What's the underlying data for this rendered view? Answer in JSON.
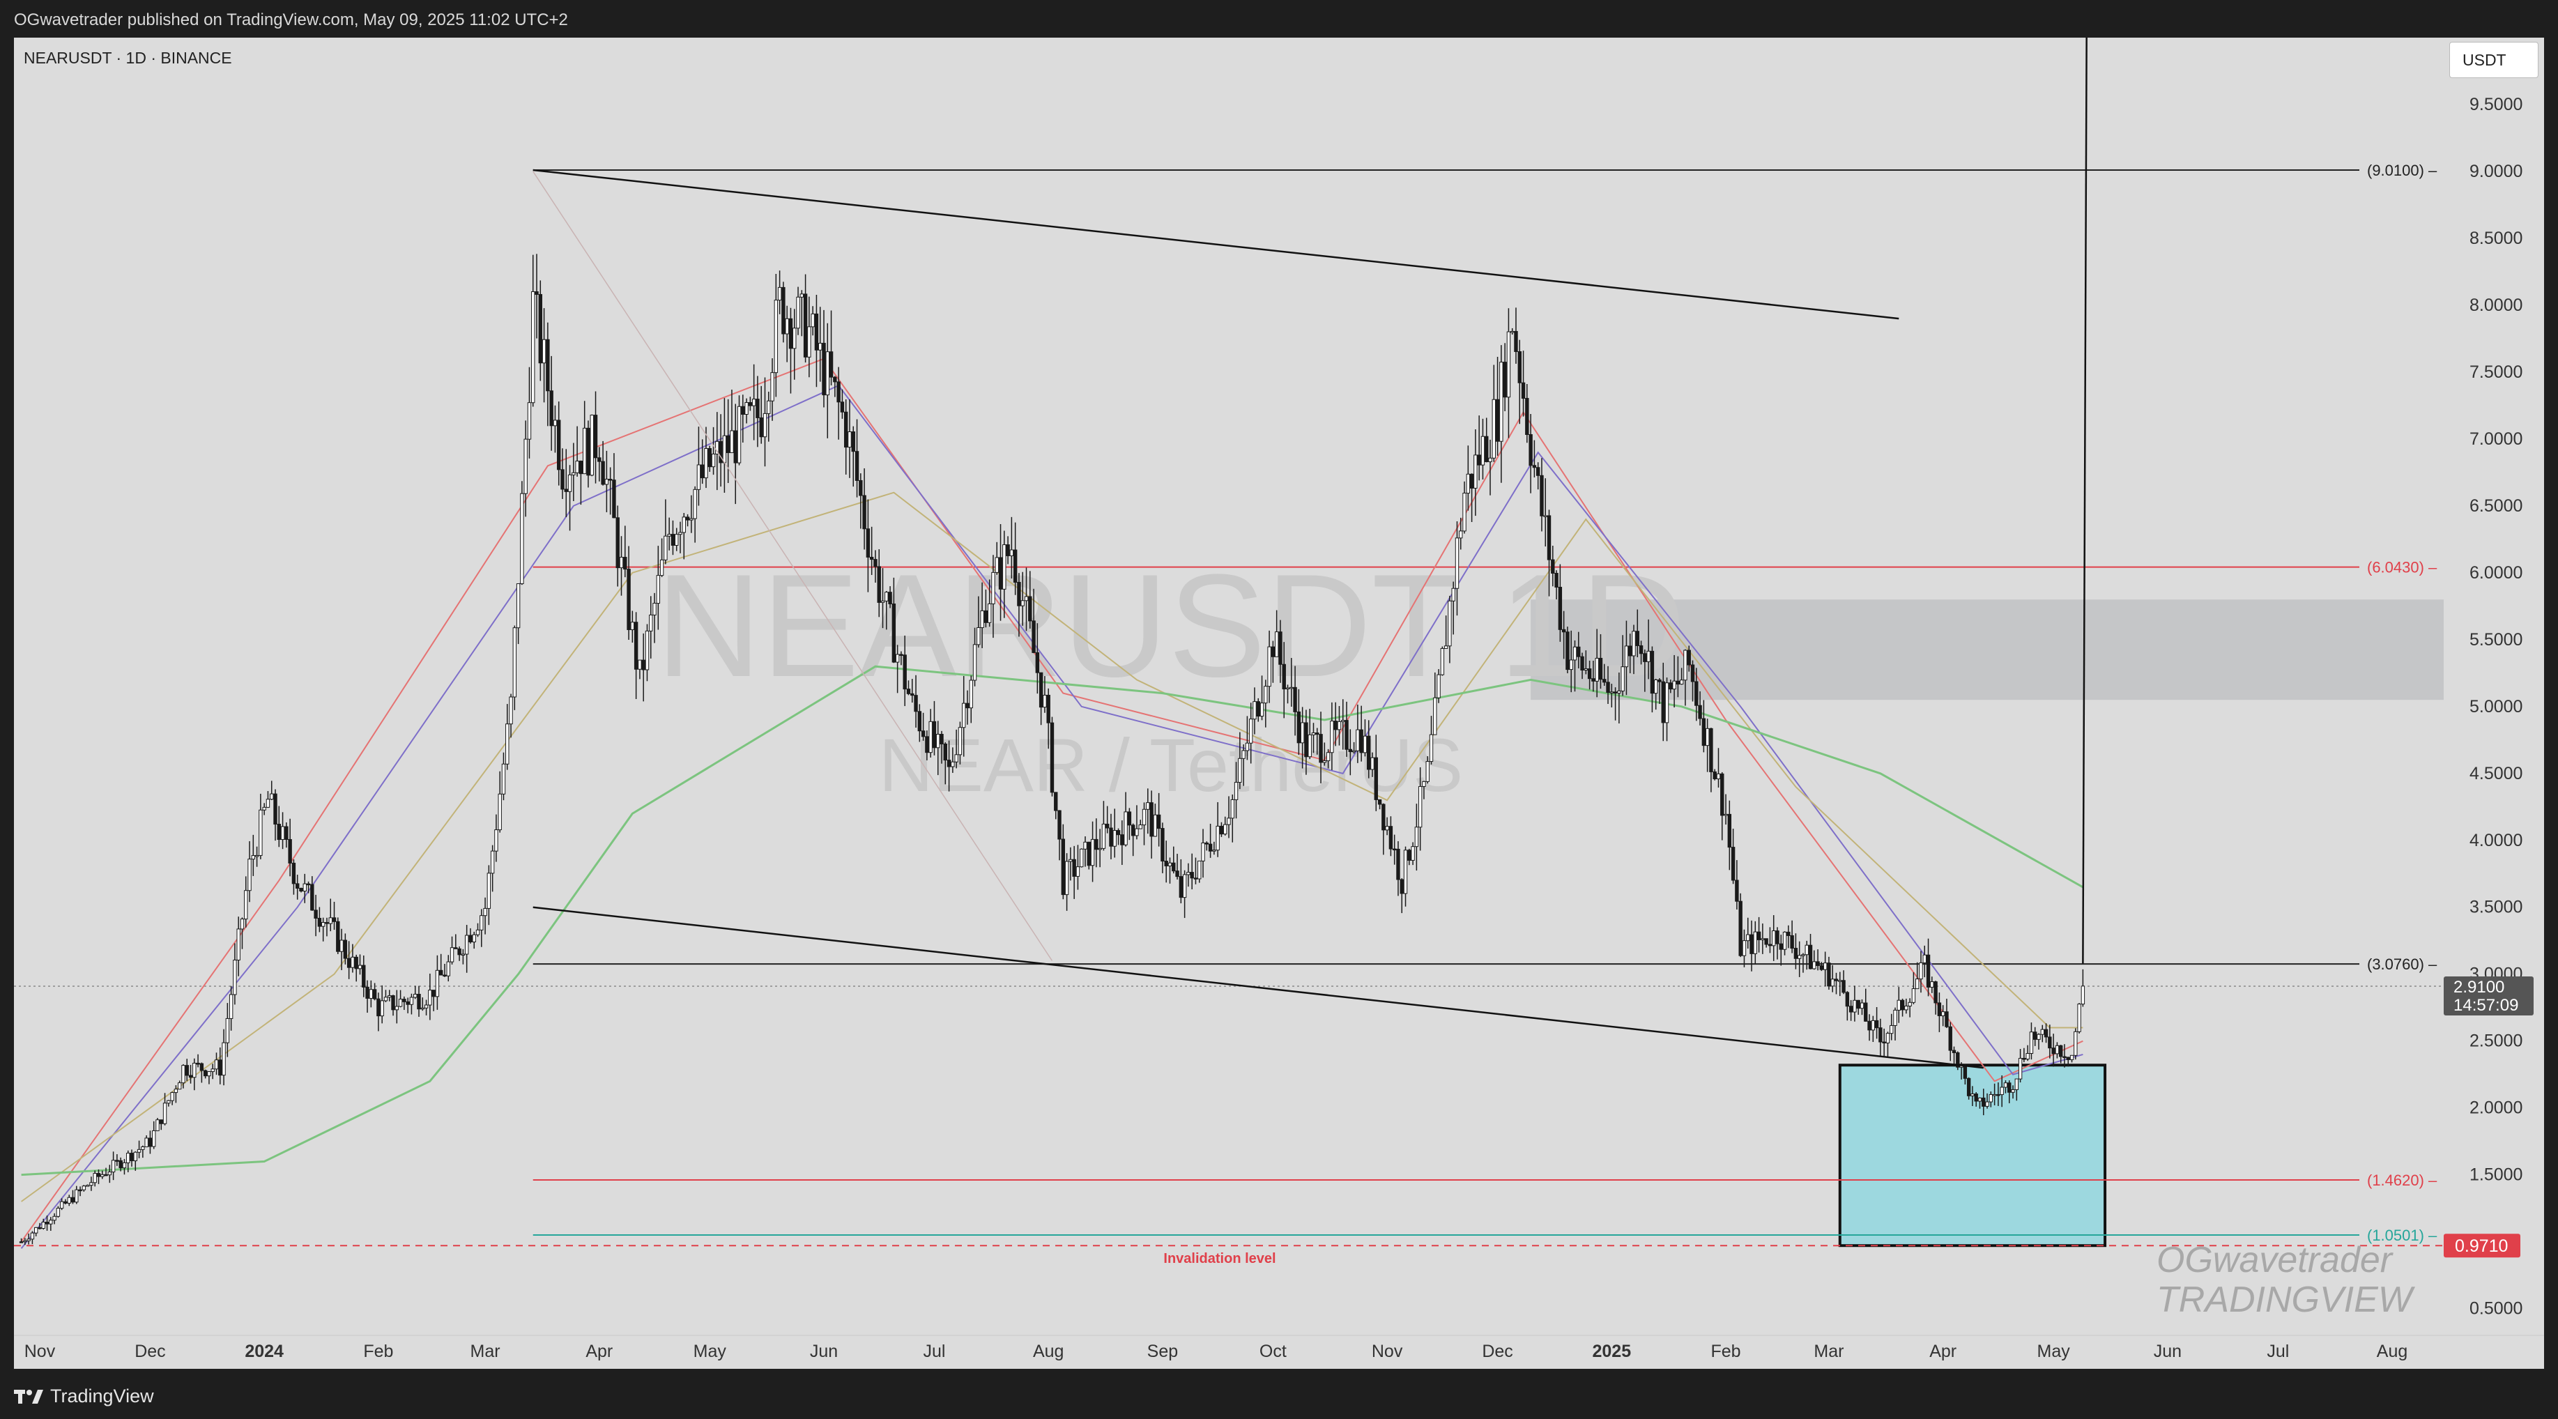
{
  "header": {
    "published_line": "OGwavetrader published on TradingView.com, May 09, 2025 11:02 UTC+2"
  },
  "footer": {
    "brand": "TradingView"
  },
  "chart_data": {
    "type": "candlestick",
    "symbol_line": "NEARUSDT · 1D · BINANCE",
    "watermark_symbol": "NEARUSDT 1D",
    "watermark_description": "NEAR / TetherUS",
    "author_watermark": [
      "OGwavetrader",
      "TRADINGVIEW"
    ],
    "unit": "USDT",
    "ylim": [
      0.3,
      10.0
    ],
    "y_ticks": [
      "9.5000",
      "9.0000",
      "8.5000",
      "8.0000",
      "7.5000",
      "7.0000",
      "6.5000",
      "6.0000",
      "5.5000",
      "5.0000",
      "4.5000",
      "4.0000",
      "3.5000",
      "3.0000",
      "2.5000",
      "2.0000",
      "1.5000",
      "0.5000"
    ],
    "x_ticks": [
      {
        "label": "Nov",
        "date": "2023-11-01",
        "bold": false
      },
      {
        "label": "Dec",
        "date": "2023-12-01",
        "bold": false
      },
      {
        "label": "2024",
        "date": "2024-01-01",
        "bold": true
      },
      {
        "label": "Feb",
        "date": "2024-02-01",
        "bold": false
      },
      {
        "label": "Mar",
        "date": "2024-03-01",
        "bold": false
      },
      {
        "label": "Apr",
        "date": "2024-04-01",
        "bold": false
      },
      {
        "label": "May",
        "date": "2024-05-01",
        "bold": false
      },
      {
        "label": "Jun",
        "date": "2024-06-01",
        "bold": false
      },
      {
        "label": "Jul",
        "date": "2024-07-01",
        "bold": false
      },
      {
        "label": "Aug",
        "date": "2024-08-01",
        "bold": false
      },
      {
        "label": "Sep",
        "date": "2024-09-01",
        "bold": false
      },
      {
        "label": "Oct",
        "date": "2024-10-01",
        "bold": false
      },
      {
        "label": "Nov",
        "date": "2024-11-01",
        "bold": false
      },
      {
        "label": "Dec",
        "date": "2024-12-01",
        "bold": false
      },
      {
        "label": "2025",
        "date": "2025-01-01",
        "bold": true
      },
      {
        "label": "Feb",
        "date": "2025-02-01",
        "bold": false
      },
      {
        "label": "Mar",
        "date": "2025-03-01",
        "bold": false
      },
      {
        "label": "Apr",
        "date": "2025-04-01",
        "bold": false
      },
      {
        "label": "May",
        "date": "2025-05-01",
        "bold": false
      },
      {
        "label": "Jun",
        "date": "2025-06-01",
        "bold": false
      },
      {
        "label": "Jul",
        "date": "2025-07-01",
        "bold": false
      },
      {
        "label": "Aug",
        "date": "2025-08-01",
        "bold": false
      }
    ],
    "x_range": [
      "2023-10-25",
      "2025-08-15"
    ],
    "price_path": [
      [
        "2023-10-27",
        1.0
      ],
      [
        "2023-11-15",
        1.45
      ],
      [
        "2023-12-01",
        1.75
      ],
      [
        "2023-12-10",
        2.3
      ],
      [
        "2023-12-20",
        2.3
      ],
      [
        "2023-12-28",
        3.8
      ],
      [
        "2024-01-02",
        4.3
      ],
      [
        "2024-01-10",
        3.7
      ],
      [
        "2024-01-20",
        3.3
      ],
      [
        "2024-02-01",
        2.75
      ],
      [
        "2024-02-15",
        2.85
      ],
      [
        "2024-03-01",
        3.5
      ],
      [
        "2024-03-08",
        5.0
      ],
      [
        "2024-03-14",
        8.0
      ],
      [
        "2024-03-22",
        6.8
      ],
      [
        "2024-04-01",
        7.0
      ],
      [
        "2024-04-12",
        5.2
      ],
      [
        "2024-04-20",
        6.3
      ],
      [
        "2024-05-01",
        6.8
      ],
      [
        "2024-05-15",
        7.2
      ],
      [
        "2024-05-20",
        8.0
      ],
      [
        "2024-05-28",
        7.8
      ],
      [
        "2024-06-07",
        7.1
      ],
      [
        "2024-06-15",
        6.0
      ],
      [
        "2024-06-25",
        5.0
      ],
      [
        "2024-07-05",
        4.5
      ],
      [
        "2024-07-15",
        5.8
      ],
      [
        "2024-07-22",
        6.2
      ],
      [
        "2024-07-31",
        5.0
      ],
      [
        "2024-08-05",
        3.7
      ],
      [
        "2024-08-15",
        4.0
      ],
      [
        "2024-08-28",
        4.2
      ],
      [
        "2024-09-06",
        3.6
      ],
      [
        "2024-09-20",
        4.3
      ],
      [
        "2024-10-01",
        5.5
      ],
      [
        "2024-10-10",
        4.7
      ],
      [
        "2024-10-25",
        4.8
      ],
      [
        "2024-11-05",
        3.7
      ],
      [
        "2024-11-12",
        4.5
      ],
      [
        "2024-11-22",
        6.6
      ],
      [
        "2024-12-01",
        7.2
      ],
      [
        "2024-12-05",
        7.9
      ],
      [
        "2024-12-12",
        6.6
      ],
      [
        "2024-12-20",
        5.4
      ],
      [
        "2025-01-01",
        5.1
      ],
      [
        "2025-01-08",
        5.6
      ],
      [
        "2025-01-15",
        5.0
      ],
      [
        "2025-01-22",
        5.3
      ],
      [
        "2025-02-01",
        4.2
      ],
      [
        "2025-02-05",
        3.2
      ],
      [
        "2025-02-15",
        3.3
      ],
      [
        "2025-03-01",
        3.0
      ],
      [
        "2025-03-10",
        2.7
      ],
      [
        "2025-03-15",
        2.5
      ],
      [
        "2025-03-27",
        3.05
      ],
      [
        "2025-04-07",
        2.2
      ],
      [
        "2025-04-10",
        2.0
      ],
      [
        "2025-04-20",
        2.2
      ],
      [
        "2025-04-25",
        2.55
      ],
      [
        "2025-05-06",
        2.4
      ],
      [
        "2025-05-09",
        2.91
      ]
    ],
    "ma_series": [
      {
        "color": "#e57373",
        "points": [
          [
            "2023-10-27",
            1.0
          ],
          [
            "2024-01-05",
            3.7
          ],
          [
            "2024-03-18",
            6.8
          ],
          [
            "2024-06-01",
            7.6
          ],
          [
            "2024-08-05",
            5.1
          ],
          [
            "2024-10-15",
            4.6
          ],
          [
            "2024-12-08",
            7.2
          ],
          [
            "2025-02-01",
            4.9
          ],
          [
            "2025-04-15",
            2.2
          ],
          [
            "2025-05-09",
            2.5
          ]
        ]
      },
      {
        "color": "#7e6fc9",
        "points": [
          [
            "2023-10-27",
            0.95
          ],
          [
            "2024-01-10",
            3.5
          ],
          [
            "2024-03-25",
            6.5
          ],
          [
            "2024-06-05",
            7.4
          ],
          [
            "2024-08-10",
            5.0
          ],
          [
            "2024-10-20",
            4.5
          ],
          [
            "2024-12-12",
            6.9
          ],
          [
            "2025-02-05",
            5.0
          ],
          [
            "2025-04-20",
            2.25
          ],
          [
            "2025-05-09",
            2.4
          ]
        ]
      },
      {
        "color": "#c2b378",
        "points": [
          [
            "2023-10-27",
            1.3
          ],
          [
            "2024-01-20",
            3.0
          ],
          [
            "2024-04-10",
            6.0
          ],
          [
            "2024-06-20",
            6.6
          ],
          [
            "2024-08-25",
            5.2
          ],
          [
            "2024-11-01",
            4.3
          ],
          [
            "2024-12-25",
            6.4
          ],
          [
            "2025-02-20",
            4.4
          ],
          [
            "2025-04-30",
            2.6
          ],
          [
            "2025-05-09",
            2.6
          ]
        ]
      },
      {
        "color": "#7cc47f",
        "points": [
          [
            "2023-10-27",
            1.5
          ],
          [
            "2024-01-01",
            1.6
          ],
          [
            "2024-02-15",
            2.2
          ],
          [
            "2024-03-10",
            3.0
          ],
          [
            "2024-04-10",
            4.2
          ],
          [
            "2024-06-15",
            5.3
          ],
          [
            "2024-09-01",
            5.1
          ],
          [
            "2024-10-15",
            4.9
          ],
          [
            "2024-12-10",
            5.2
          ],
          [
            "2025-01-20",
            5.0
          ],
          [
            "2025-03-15",
            4.5
          ],
          [
            "2025-05-09",
            3.65
          ]
        ]
      }
    ],
    "trendlines": [
      {
        "name": "upper-wedge-line",
        "from": [
          "2024-03-14",
          9.01
        ],
        "to": [
          "2025-03-20",
          7.9
        ]
      },
      {
        "name": "lower-wedge-line",
        "from": [
          "2024-03-14",
          3.5
        ],
        "to": [
          "2025-04-12",
          2.3
        ]
      },
      {
        "name": "projection-line",
        "from": [
          "2025-05-09",
          3.08
        ],
        "to": [
          "2025-05-10",
          10.0
        ]
      },
      {
        "name": "diagonal-guide-line",
        "from": [
          "2024-03-14",
          9.0
        ],
        "to": [
          "2024-08-02",
          3.1
        ],
        "faint": true
      }
    ],
    "levels": [
      {
        "name": "level-9",
        "value": 9.01,
        "label": "(9.0100)",
        "color": "#222222",
        "from": "2024-03-14"
      },
      {
        "name": "level-6",
        "value": 6.043,
        "label": "(6.0430)",
        "color": "#e0404a",
        "from": "2024-03-14"
      },
      {
        "name": "level-3",
        "value": 3.076,
        "label": "(3.0760)",
        "color": "#222222",
        "from": "2024-03-14"
      },
      {
        "name": "level-1-46",
        "value": 1.462,
        "label": "(1.4620)",
        "color": "#e0404a",
        "from": "2024-03-14"
      },
      {
        "name": "level-1-05",
        "value": 1.0501,
        "label": "(1.0501)",
        "color": "#26a69a",
        "from": "2024-03-14"
      }
    ],
    "invalidation": {
      "value": 0.971,
      "label": "Invalidation level",
      "badge": "0.9710",
      "color": "#e0404a"
    },
    "resistance_zone": {
      "from": "2024-12-10",
      "y_low": 5.05,
      "y_high": 5.8,
      "color": "#c3c4c6"
    },
    "buy_zone": {
      "from": "2025-03-04",
      "to": "2025-05-15",
      "y_low": 0.971,
      "y_high": 2.32,
      "color": "#9dd8df"
    },
    "last_price": {
      "value": 2.91,
      "label": "2.9100",
      "countdown": "14:57:09"
    }
  }
}
